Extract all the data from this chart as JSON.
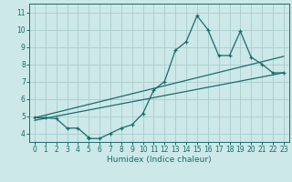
{
  "xlabel": "Humidex (Indice chaleur)",
  "background_color": "#cce8e8",
  "grid_color": "#aacccc",
  "line_color": "#1a6b6b",
  "xlim": [
    -0.5,
    23.5
  ],
  "ylim": [
    3.5,
    11.5
  ],
  "xticks": [
    0,
    1,
    2,
    3,
    4,
    5,
    6,
    7,
    8,
    9,
    10,
    11,
    12,
    13,
    14,
    15,
    16,
    17,
    18,
    19,
    20,
    21,
    22,
    23
  ],
  "yticks": [
    4,
    5,
    6,
    7,
    8,
    9,
    10,
    11
  ],
  "scatter_x": [
    0,
    1,
    2,
    3,
    4,
    5,
    5,
    6,
    7,
    8,
    9,
    10,
    11,
    12,
    13,
    14,
    15,
    16,
    17,
    18,
    19,
    20,
    21,
    22,
    23
  ],
  "scatter_y": [
    4.9,
    4.9,
    4.85,
    4.3,
    4.3,
    3.75,
    3.7,
    3.7,
    4.0,
    4.3,
    4.5,
    5.15,
    6.5,
    7.0,
    8.8,
    9.3,
    10.8,
    10.0,
    8.5,
    8.5,
    9.9,
    8.4,
    8.0,
    7.5,
    7.5
  ],
  "line1_x": [
    0,
    23
  ],
  "line1_y": [
    4.75,
    7.5
  ],
  "line2_x": [
    0,
    23
  ],
  "line2_y": [
    4.9,
    8.45
  ]
}
